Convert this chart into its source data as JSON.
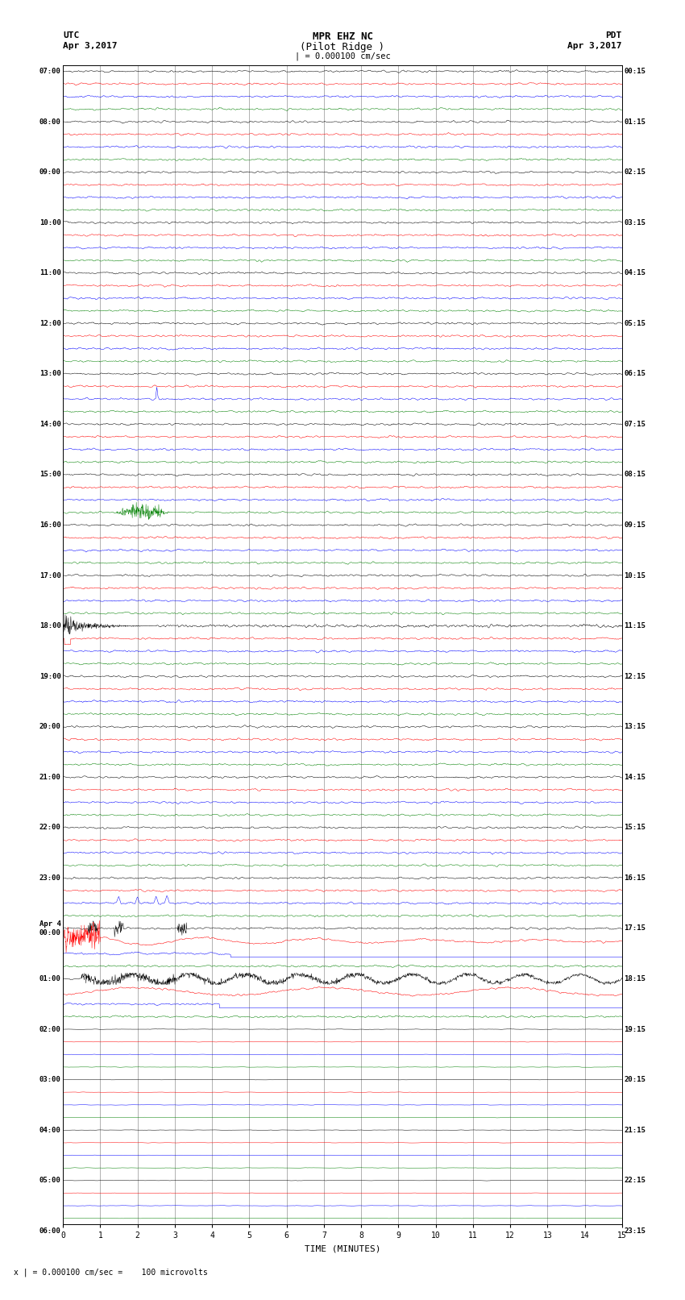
{
  "title_line1": "MPR EHZ NC",
  "title_line2": "(Pilot Ridge )",
  "scale_label": "| = 0.000100 cm/sec",
  "left_label_top": "UTC",
  "left_label_date": "Apr 3,2017",
  "right_label_top": "PDT",
  "right_label_date": "Apr 3,2017",
  "xlabel": "TIME (MINUTES)",
  "footer": "x | = 0.000100 cm/sec =    100 microvolts",
  "utc_times": [
    "07:00",
    "",
    "",
    "",
    "08:00",
    "",
    "",
    "",
    "09:00",
    "",
    "",
    "",
    "10:00",
    "",
    "",
    "",
    "11:00",
    "",
    "",
    "",
    "12:00",
    "",
    "",
    "",
    "13:00",
    "",
    "",
    "",
    "14:00",
    "",
    "",
    "",
    "15:00",
    "",
    "",
    "",
    "16:00",
    "",
    "",
    "",
    "17:00",
    "",
    "",
    "",
    "18:00",
    "",
    "",
    "",
    "19:00",
    "",
    "",
    "",
    "20:00",
    "",
    "",
    "",
    "21:00",
    "",
    "",
    "",
    "22:00",
    "",
    "",
    "",
    "23:00",
    "",
    "",
    "",
    "Apr 4\n00:00",
    "",
    "",
    "",
    "01:00",
    "",
    "",
    "",
    "02:00",
    "",
    "",
    "",
    "03:00",
    "",
    "",
    "",
    "04:00",
    "",
    "",
    "",
    "05:00",
    "",
    "",
    "",
    "06:00",
    "",
    "",
    ""
  ],
  "pdt_times": [
    "00:15",
    "",
    "",
    "",
    "01:15",
    "",
    "",
    "",
    "02:15",
    "",
    "",
    "",
    "03:15",
    "",
    "",
    "",
    "04:15",
    "",
    "",
    "",
    "05:15",
    "",
    "",
    "",
    "06:15",
    "",
    "",
    "",
    "07:15",
    "",
    "",
    "",
    "08:15",
    "",
    "",
    "",
    "09:15",
    "",
    "",
    "",
    "10:15",
    "",
    "",
    "",
    "11:15",
    "",
    "",
    "",
    "12:15",
    "",
    "",
    "",
    "13:15",
    "",
    "",
    "",
    "14:15",
    "",
    "",
    "",
    "15:15",
    "",
    "",
    "",
    "16:15",
    "",
    "",
    "",
    "17:15",
    "",
    "",
    "",
    "18:15",
    "",
    "",
    "",
    "19:15",
    "",
    "",
    "",
    "20:15",
    "",
    "",
    "",
    "21:15",
    "",
    "",
    "",
    "22:15",
    "",
    "",
    "",
    "23:15",
    "",
    "",
    ""
  ],
  "n_rows": 92,
  "x_min": 0,
  "x_max": 15,
  "bg_color": "#ffffff",
  "noise_amplitude": 0.05,
  "colors_cycle": [
    "#000000",
    "#ff0000",
    "#0000ff",
    "#008000"
  ]
}
